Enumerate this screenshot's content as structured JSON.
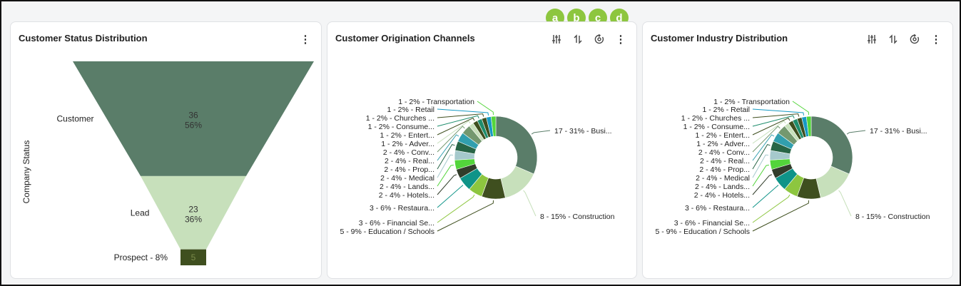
{
  "badges": [
    "a",
    "b",
    "c",
    "d"
  ],
  "colors": {
    "funnel": [
      "#5a7d69",
      "#c7e0bb",
      "#3f4f1f"
    ],
    "slices": [
      "#5a7d69",
      "#c7e0bb",
      "#3f4f1f",
      "#8dc63f",
      "#0f9488",
      "#313d2a",
      "#53d53b",
      "#a5c9cc",
      "#276546",
      "#319fae",
      "#74986f",
      "#c7e0bb",
      "#3f4f1f",
      "#1e8d6c",
      "#3f4f1f",
      "#169ac3",
      "#53d53b"
    ]
  },
  "panel1": {
    "title": "Customer Status Distribution",
    "ylabel": "Company Status",
    "menu_icon": "kebab-menu-icon",
    "stages": [
      {
        "label": "Customer",
        "value": "36",
        "pct": "56%"
      },
      {
        "label": "Lead",
        "value": "23",
        "pct": "36%"
      },
      {
        "label": "Prospect - 8%",
        "value": "5",
        "pct": ""
      }
    ]
  },
  "panel2": {
    "title": "Customer Origination Channels",
    "toolbar_icons": [
      "filter-sliders-icon",
      "sort-arrows-icon",
      "refresh-icon",
      "kebab-menu-icon"
    ]
  },
  "panel3": {
    "title": "Customer Industry Distribution",
    "toolbar_icons": [
      "filter-sliders-icon",
      "sort-arrows-icon",
      "refresh-icon",
      "kebab-menu-icon"
    ]
  },
  "chart_data": [
    {
      "type": "funnel",
      "title": "Customer Status Distribution",
      "ylabel": "Company Status",
      "categories": [
        "Customer",
        "Lead",
        "Prospect"
      ],
      "values": [
        36,
        23,
        5
      ],
      "percentages": [
        56,
        36,
        8
      ]
    },
    {
      "type": "pie",
      "title": "Customer Origination Channels",
      "donut": true,
      "values": [
        17,
        8,
        5,
        3,
        3,
        2,
        2,
        2,
        2,
        2,
        2,
        1,
        1,
        1,
        1,
        1,
        1
      ],
      "labels": [
        "17 - 31% - Busi...",
        "8 - 15% - Construction",
        "5 - 9% - Education / Schools",
        "3 - 6% - Financial Se...",
        "3 - 6% - Restaura...",
        "2 - 4% - Hotels...",
        "2 - 4% - Lands...",
        "2 - 4% - Medical",
        "2 - 4% - Prop...",
        "2 - 4% - Real...",
        "2 - 4% - Conv...",
        "1 - 2% - Adver...",
        "1 - 2% - Entert...",
        "1 - 2% - Consume...",
        "1 - 2% - Churches ...",
        "1 - 2% - Retail",
        "1 - 2% - Transportation"
      ]
    },
    {
      "type": "pie",
      "title": "Customer Industry Distribution",
      "donut": true,
      "values": [
        17,
        8,
        5,
        3,
        3,
        2,
        2,
        2,
        2,
        2,
        2,
        1,
        1,
        1,
        1,
        1,
        1
      ],
      "labels": [
        "17 - 31% - Busi...",
        "8 - 15% - Construction",
        "5 - 9% - Education / Schools",
        "3 - 6% - Financial Se...",
        "3 - 6% - Restaura...",
        "2 - 4% - Hotels...",
        "2 - 4% - Lands...",
        "2 - 4% - Medical",
        "2 - 4% - Prop...",
        "2 - 4% - Real...",
        "2 - 4% - Conv...",
        "1 - 2% - Adver...",
        "1 - 2% - Entert...",
        "1 - 2% - Consume...",
        "1 - 2% - Churches ...",
        "1 - 2% - Retail",
        "1 - 2% - Transportation"
      ]
    }
  ]
}
